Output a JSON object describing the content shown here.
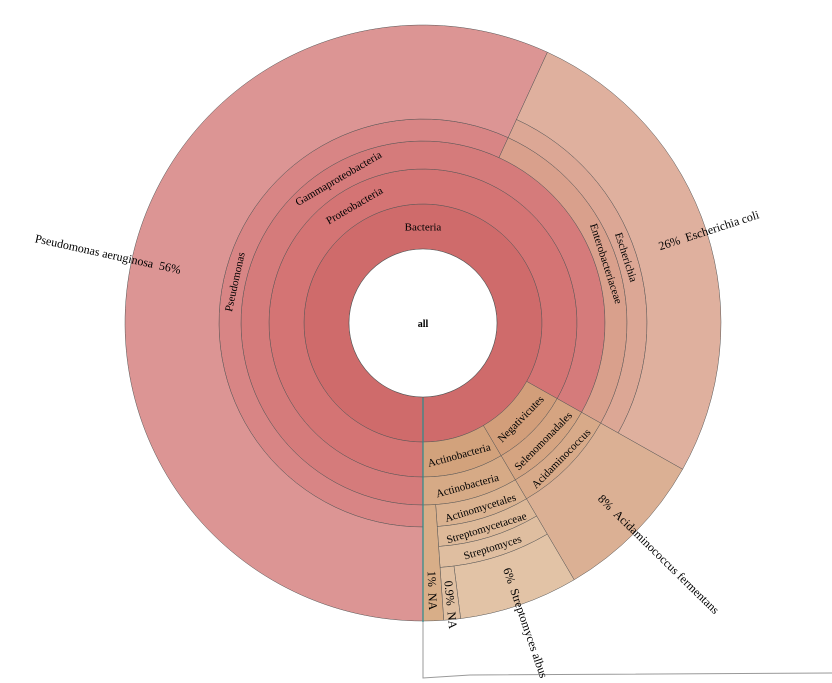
{
  "chart_data": {
    "type": "sunburst",
    "root": {
      "name": "all",
      "children": [
        {
          "name": "Bacteria",
          "color": "#cf6b6b",
          "children": [
            {
              "name": "Proteobacteria",
              "color": "#d47474",
              "children": [
                {
                  "name": "Gammaproteobacteria",
                  "color": "#d57b7b",
                  "children": [
                    {
                      "name": "Pseudomonas",
                      "color": "#d88585",
                      "children": [
                        {
                          "name": "Pseudomonas aeruginosa",
                          "pct": "56%",
                          "value": 56.4,
                          "color": "#dc9594"
                        }
                      ]
                    },
                    {
                      "name": "Enterobacteriaceae",
                      "color": "#d9a08c",
                      "children": [
                        {
                          "name": "Escherichia",
                          "color": "#dca795",
                          "children": [
                            {
                              "name": "Escherichia coli",
                              "pct": "26%",
                              "value": 26.1,
                              "color": "#dfb09e"
                            }
                          ]
                        }
                      ]
                    }
                  ]
                }
              ]
            },
            {
              "name": "Negativicutes",
              "color": "#d29e7a",
              "children": [
                {
                  "name": "Selenomonadales",
                  "color": "#d5a481",
                  "children": [
                    {
                      "name": "Acidaminococcus",
                      "color": "#d8aa89",
                      "children": [
                        {
                          "name": "Acidaminococcus fermentans",
                          "pct": "8%",
                          "value": 8.3,
                          "color": "#dbb094"
                        }
                      ]
                    }
                  ]
                }
              ]
            },
            {
              "name": "Actinobacteria",
              "color": "#d2a27c",
              "children": [
                {
                  "name": "Actinobacteria",
                  "color": "#d6aa86",
                  "children": [
                    {
                      "name": "Actinomycetales",
                      "color": "#dab290",
                      "children": [
                        {
                          "name": "Streptomycetaceae",
                          "color": "#ddb999",
                          "children": [
                            {
                              "name": "Streptomyces",
                              "color": "#dfbea0",
                              "children": [
                                {
                                  "name": "Streptomyces albus",
                                  "pct": "6%",
                                  "value": 6.4,
                                  "color": "#e2c3a6"
                                },
                                {
                                  "name": "NA",
                                  "pct": "0.9%",
                                  "value": 0.9,
                                  "color": "#e0c0a2"
                                }
                              ]
                            }
                          ]
                        }
                      ]
                    },
                    {
                      "name": "NA",
                      "pct": "1%",
                      "value": 1.1,
                      "color": "#d8ae88"
                    }
                  ]
                }
              ]
            }
          ]
        }
      ]
    }
  }
}
